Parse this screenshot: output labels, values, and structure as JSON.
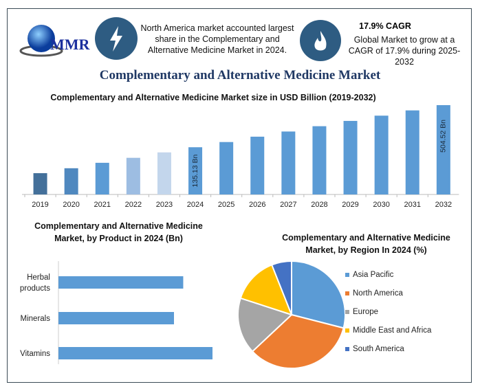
{
  "header": {
    "logo_text": "MMR",
    "highlight_text": "North America market accounted largest share in the Complementary and Alternative Medicine Market in 2024.",
    "cagr_title": "17.9% CAGR",
    "cagr_text": "Global Market to grow at a CAGR of 17.9% during 2025-2032",
    "icons": [
      "lightning-icon",
      "flame-icon",
      "globe-logo-icon"
    ],
    "main_title": "Complementary and Alternative Medicine Market"
  },
  "chart_data": [
    {
      "type": "bar",
      "title": "Complementary and Alternative Medicine Market size in USD Billion (2019-2032)",
      "categories": [
        "2019",
        "2020",
        "2021",
        "2022",
        "2023",
        "2024",
        "2025",
        "2026",
        "2027",
        "2028",
        "2029",
        "2030",
        "2031",
        "2032"
      ],
      "values": [
        60,
        70,
        83,
        97,
        115,
        135.13,
        159,
        188,
        221,
        261,
        308,
        363,
        428,
        504.52
      ],
      "data_labels": {
        "2024": "135.13 Bn",
        "2032": "504.52 Bn"
      },
      "colors": [
        "#44709a",
        "#4f88bf",
        "#5b9bd5",
        "#9dbde2",
        "#c3d6ec",
        "#5b9bd5",
        "#5b9bd5",
        "#5b9bd5",
        "#5b9bd5",
        "#5b9bd5",
        "#5b9bd5",
        "#5b9bd5",
        "#5b9bd5",
        "#5b9bd5"
      ],
      "grid": false
    },
    {
      "type": "bar",
      "orientation": "horizontal",
      "title": "Complementary and Alternative Medicine Market, by Product in 2024 (Bn)",
      "categories": [
        "Herbal products",
        "Minerals",
        "Vitamins"
      ],
      "values": [
        81,
        75,
        100
      ],
      "color": "#5b9bd5",
      "grid": false
    },
    {
      "type": "pie",
      "title": "Complementary and Alternative Medicine Market, by Region In 2024 (%)",
      "labels": [
        "Asia Pacific",
        "North America",
        "Europe",
        "Middle East and Africa",
        "South America"
      ],
      "values": [
        29,
        34,
        17,
        14,
        6
      ],
      "colors": [
        "#5b9bd5",
        "#ed7d31",
        "#a5a5a5",
        "#ffc000",
        "#4472c4"
      ],
      "legend_position": "right"
    }
  ]
}
